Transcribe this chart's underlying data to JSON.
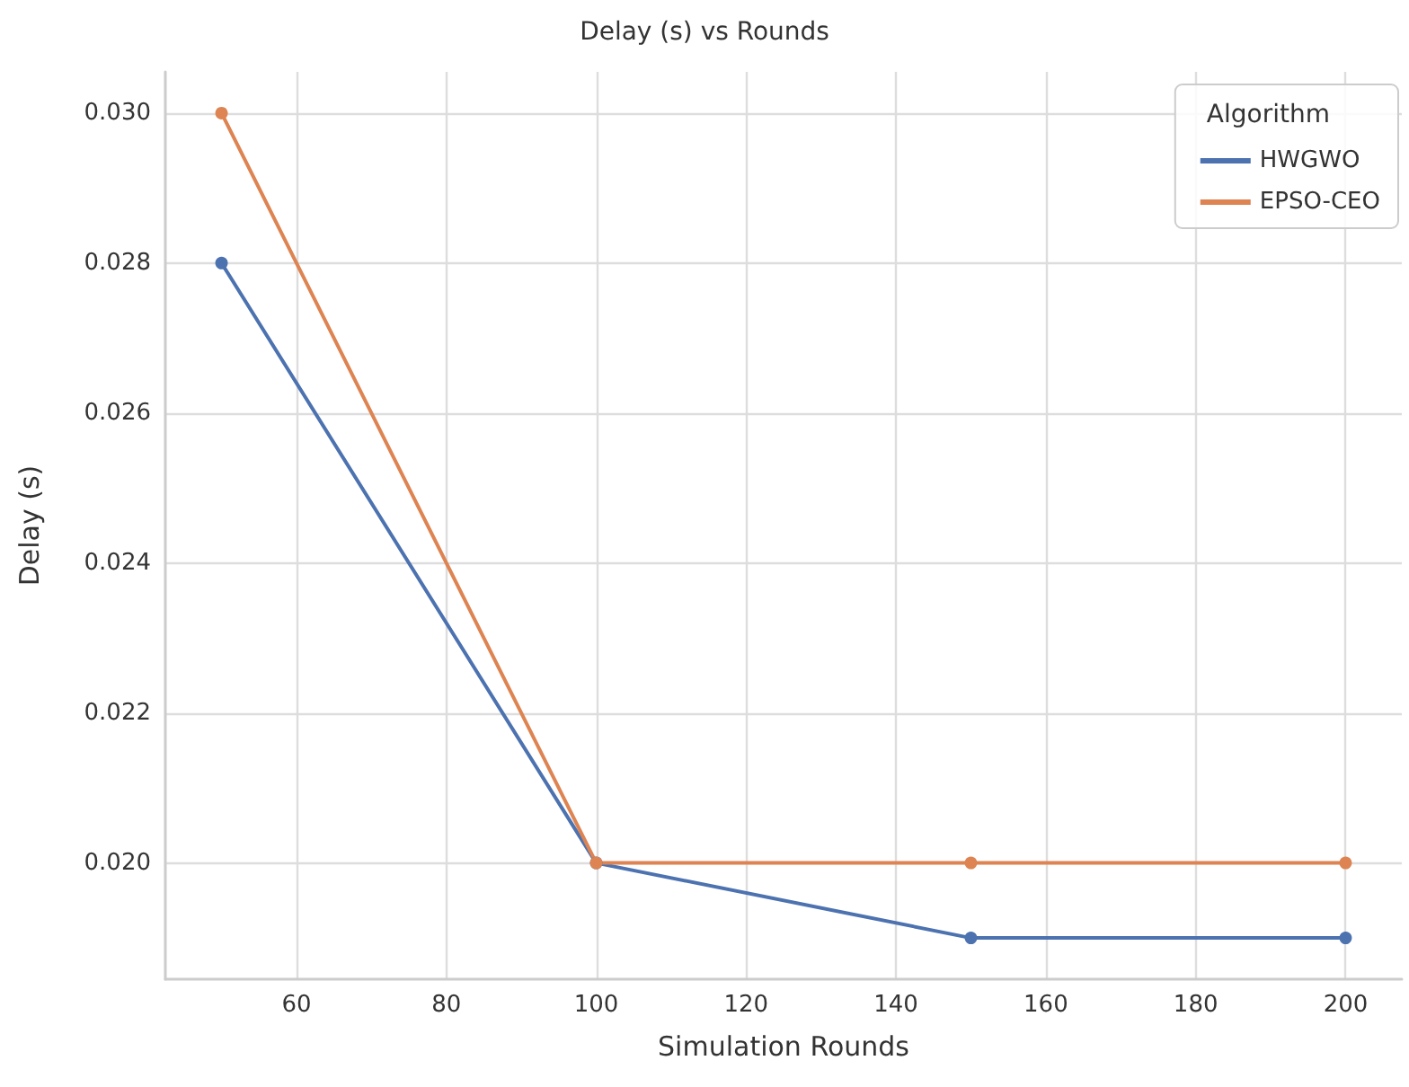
{
  "chart_data": {
    "type": "line",
    "title": "Delay (s) vs Rounds",
    "xlabel": "Simulation Rounds",
    "ylabel": "Delay (s)",
    "legend_title": "Algorithm",
    "x": [
      50,
      100,
      150,
      200
    ],
    "series": [
      {
        "name": "HWGWO",
        "color": "#4c72b0",
        "values": [
          0.028,
          0.02,
          0.019,
          0.019
        ]
      },
      {
        "name": "EPSO-CEO",
        "color": "#dd8452",
        "values": [
          0.03,
          0.02,
          0.02,
          0.02
        ]
      }
    ],
    "xlim": [
      42.5,
      207.5
    ],
    "ylim": [
      0.01845,
      0.03055
    ],
    "xticks": [
      60,
      80,
      100,
      120,
      140,
      160,
      180,
      200
    ],
    "yticks": [
      {
        "value": 0.02,
        "label": "0.020"
      },
      {
        "value": 0.022,
        "label": "0.022"
      },
      {
        "value": 0.024,
        "label": "0.024"
      },
      {
        "value": 0.026,
        "label": "0.026"
      },
      {
        "value": 0.028,
        "label": "0.028"
      },
      {
        "value": 0.03,
        "label": "0.030"
      }
    ],
    "grid": true,
    "legend": "top right",
    "marker": "circle",
    "line_style": "solid"
  }
}
